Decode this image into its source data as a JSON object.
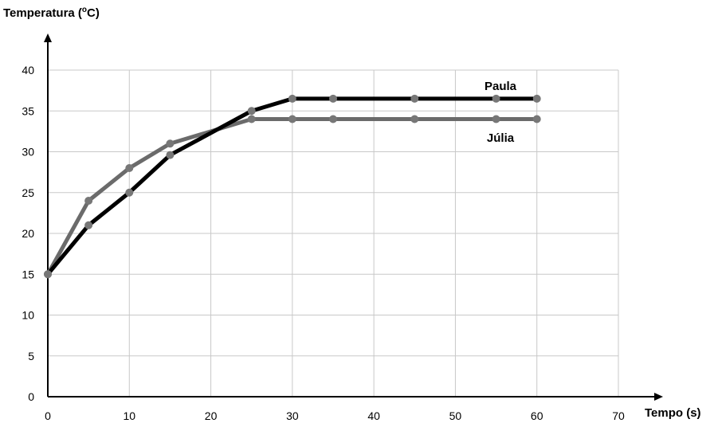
{
  "chart_data": {
    "type": "line",
    "ylabel_prefix": "Temperatura (",
    "ylabel_unit_sup": "o",
    "ylabel_suffix": "C)",
    "xlabel": "Tempo (s)",
    "xlim": [
      0,
      70
    ],
    "ylim": [
      0,
      40
    ],
    "xticks": [
      0,
      10,
      20,
      30,
      40,
      50,
      60,
      70
    ],
    "yticks": [
      0,
      5,
      10,
      15,
      20,
      25,
      30,
      35,
      40
    ],
    "grid": true,
    "series": [
      {
        "name": "Paula",
        "color": "#000000",
        "x": [
          0,
          5,
          10,
          15,
          25,
          30,
          35,
          45,
          55,
          60
        ],
        "y": [
          15,
          21,
          25,
          29.6,
          35,
          36.5,
          36.5,
          36.5,
          36.5,
          36.5
        ]
      },
      {
        "name": "Júlia",
        "color": "#6b6b6b",
        "x": [
          0,
          5,
          10,
          15,
          25,
          30,
          35,
          45,
          55,
          60
        ],
        "y": [
          15,
          24,
          28,
          31,
          34,
          34,
          34,
          34,
          34,
          34
        ]
      }
    ]
  }
}
